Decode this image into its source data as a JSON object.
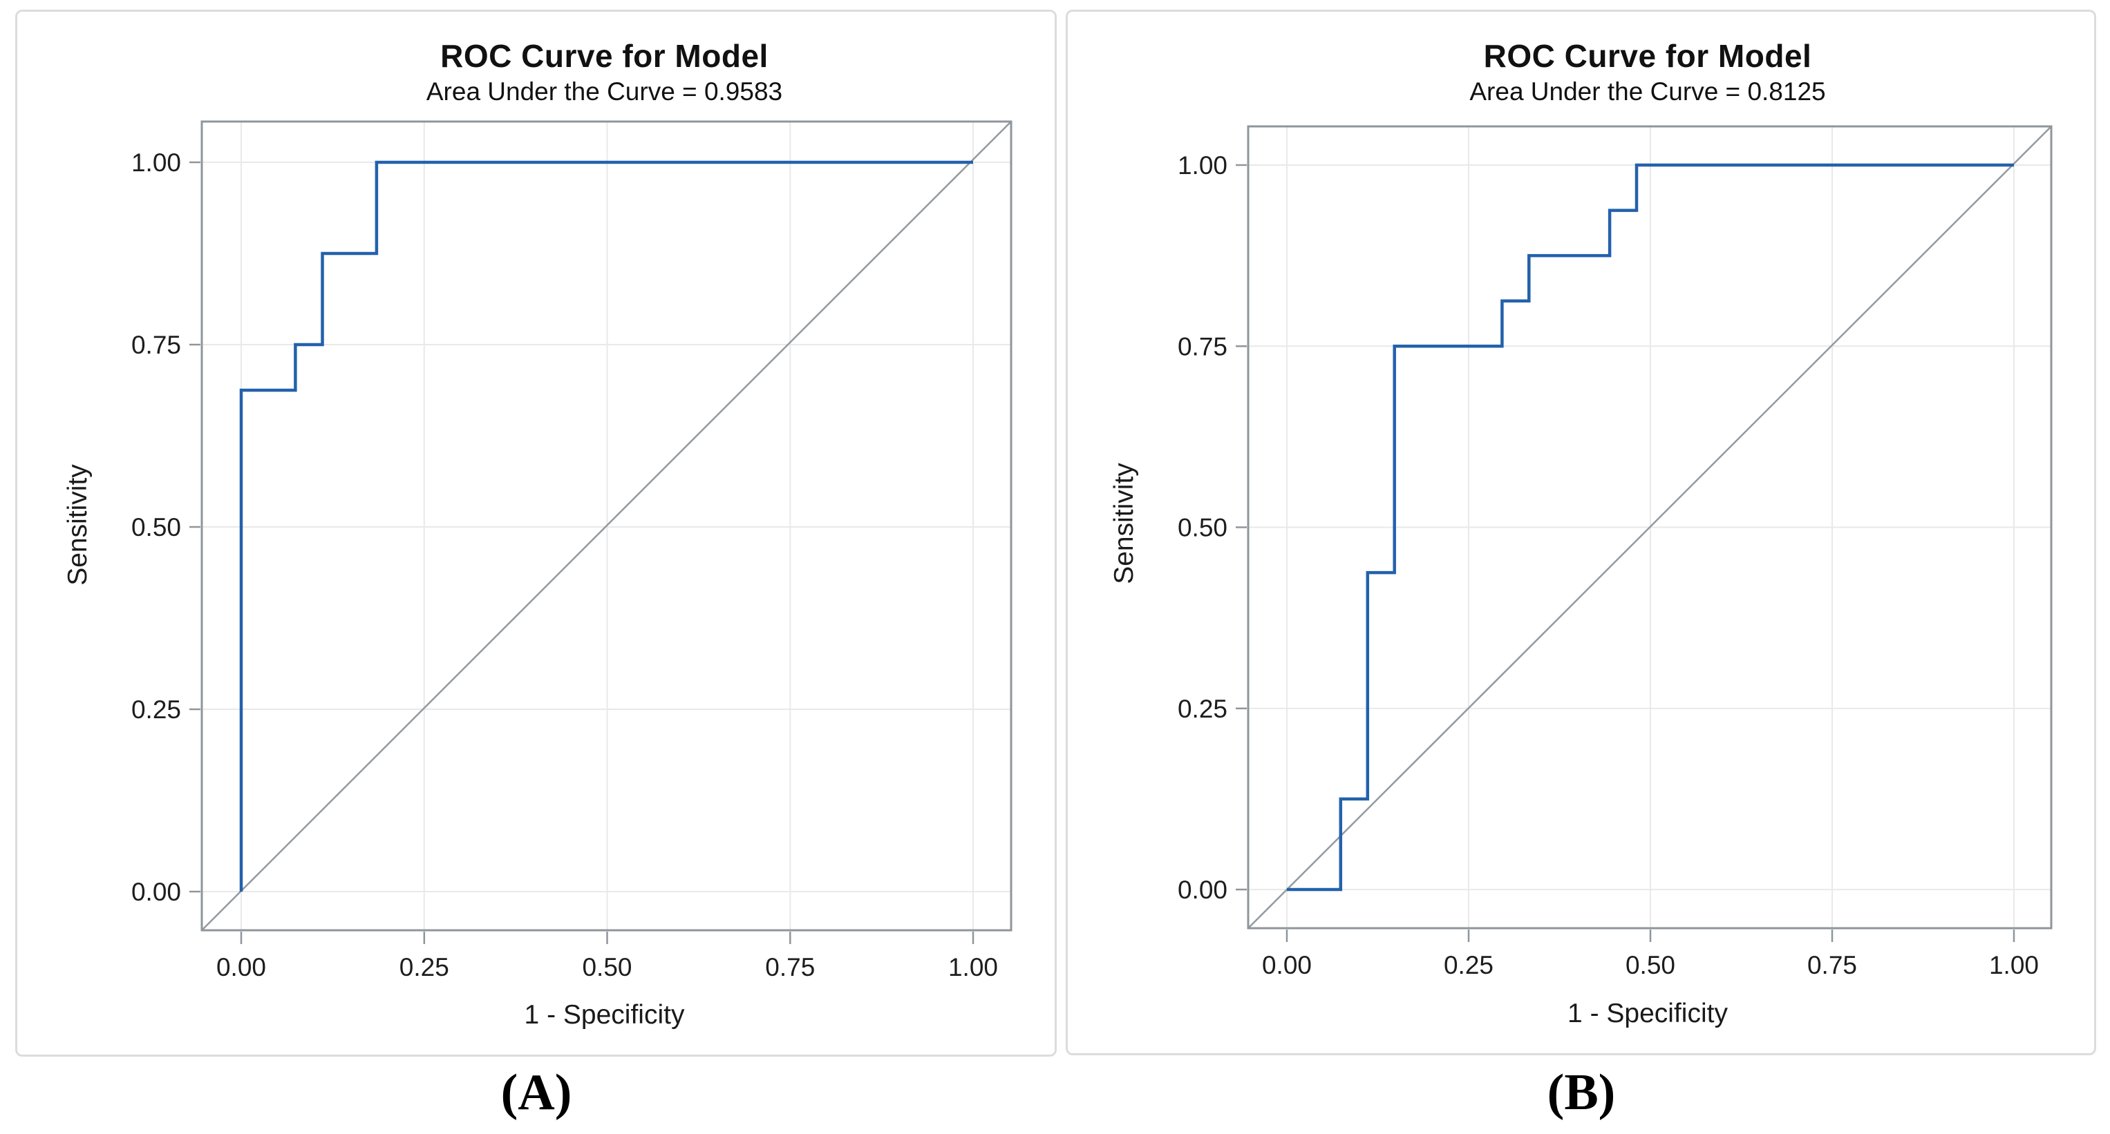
{
  "colors": {
    "curve_blue": "#2361ac",
    "diagonal_gray": "#929aa0",
    "grid_gray": "#e9e9e9",
    "frame_gray": "#8f969b",
    "panel_border": "#dcdcdc",
    "text": "#111111"
  },
  "chart_data": [
    {
      "type": "line",
      "step": true,
      "panel": "A",
      "caption": "(A)",
      "title": "ROC Curve for Model",
      "subtitle": "Area Under the Curve = 0.9583",
      "auc": 0.9583,
      "xlabel": "1 - Specificity",
      "ylabel": "Sensitivity",
      "xlim": [
        -0.054,
        1.052
      ],
      "ylim": [
        -0.054,
        1.052
      ],
      "grid": true,
      "legend": "none",
      "diagonal_reference_line": true,
      "x_tick_values": [
        0,
        0.25,
        0.5,
        0.75,
        1
      ],
      "x_tick_labels": [
        "0.00",
        "0.25",
        "0.50",
        "0.75",
        "1.00"
      ],
      "y_tick_values": [
        0,
        0.25,
        0.5,
        0.75,
        1
      ],
      "y_tick_labels": [
        "0.00",
        "0.25",
        "0.50",
        "0.75",
        "1.00"
      ],
      "roc_points": [
        [
          0,
          0
        ],
        [
          0,
          0.6875
        ],
        [
          0.074,
          0.6875
        ],
        [
          0.074,
          0.75
        ],
        [
          0.111,
          0.75
        ],
        [
          0.111,
          0.875
        ],
        [
          0.185,
          0.875
        ],
        [
          0.185,
          1.0
        ],
        [
          1.0,
          1.0
        ]
      ]
    },
    {
      "type": "line",
      "step": true,
      "panel": "B",
      "caption": "(B)",
      "title": "ROC Curve for Model",
      "subtitle": "Area Under the Curve = 0.8125",
      "auc": 0.8125,
      "xlabel": "1 - Specificity",
      "ylabel": "Sensitivity",
      "xlim": [
        -0.054,
        1.052
      ],
      "ylim": [
        -0.054,
        1.052
      ],
      "grid": true,
      "legend": "none",
      "diagonal_reference_line": true,
      "x_tick_values": [
        0,
        0.25,
        0.5,
        0.75,
        1
      ],
      "x_tick_labels": [
        "0.00",
        "0.25",
        "0.50",
        "0.75",
        "1.00"
      ],
      "y_tick_values": [
        0,
        0.25,
        0.5,
        0.75,
        1
      ],
      "y_tick_labels": [
        "0.00",
        "0.25",
        "0.50",
        "0.75",
        "1.00"
      ],
      "roc_points": [
        [
          0,
          0
        ],
        [
          0.074,
          0
        ],
        [
          0.074,
          0.125
        ],
        [
          0.111,
          0.125
        ],
        [
          0.111,
          0.4375
        ],
        [
          0.148,
          0.4375
        ],
        [
          0.148,
          0.75
        ],
        [
          0.296,
          0.75
        ],
        [
          0.296,
          0.8125
        ],
        [
          0.333,
          0.8125
        ],
        [
          0.333,
          0.875
        ],
        [
          0.444,
          0.875
        ],
        [
          0.444,
          0.9375
        ],
        [
          0.481,
          0.9375
        ],
        [
          0.481,
          1.0
        ],
        [
          1.0,
          1.0
        ]
      ]
    }
  ]
}
